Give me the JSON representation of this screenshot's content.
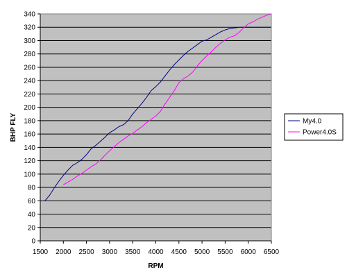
{
  "chart_data": {
    "type": "line",
    "title": "",
    "xlabel": "RPM",
    "ylabel": "BHP FLY",
    "xlim": [
      1500,
      6500
    ],
    "ylim": [
      0,
      340
    ],
    "xticks": [
      1500,
      2000,
      2500,
      3000,
      3500,
      4000,
      4500,
      5000,
      5500,
      6000,
      6500
    ],
    "yticks": [
      0,
      20,
      40,
      60,
      80,
      100,
      120,
      140,
      160,
      180,
      200,
      220,
      240,
      260,
      280,
      300,
      320,
      340
    ],
    "grid": "horizontal",
    "legend_position": "right",
    "plot_background": "#c0c0c0",
    "series": [
      {
        "name": "My4.0",
        "color": "#000080",
        "x": [
          1600,
          1700,
          1800,
          1900,
          2000,
          2100,
          2200,
          2300,
          2400,
          2500,
          2600,
          2700,
          2800,
          2900,
          3000,
          3100,
          3200,
          3300,
          3400,
          3500,
          3600,
          3700,
          3800,
          3900,
          4000,
          4100,
          4200,
          4300,
          4400,
          4500,
          4600,
          4700,
          4800,
          4900,
          5000,
          5100,
          5200,
          5300,
          5400,
          5500,
          5600,
          5700,
          5800,
          5900,
          6000,
          6100,
          6200,
          6300,
          6400,
          6500
        ],
        "y": [
          60,
          68,
          79,
          89,
          98,
          106,
          113,
          117,
          122,
          129,
          138,
          143,
          149,
          155,
          162,
          166,
          171,
          174,
          180,
          190,
          198,
          206,
          215,
          225,
          231,
          238,
          247,
          256,
          264,
          271,
          278,
          284,
          289,
          294,
          299,
          301,
          305,
          309,
          313,
          316,
          318,
          319,
          320,
          320,
          320,
          320,
          320,
          320,
          320,
          320
        ]
      },
      {
        "name": "Power4.0S",
        "color": "#ff00ff",
        "x": [
          2000,
          2100,
          2200,
          2300,
          2400,
          2500,
          2600,
          2700,
          2800,
          2900,
          3000,
          3100,
          3200,
          3300,
          3400,
          3500,
          3600,
          3700,
          3800,
          3900,
          4000,
          4100,
          4200,
          4300,
          4400,
          4500,
          4600,
          4700,
          4800,
          4900,
          5000,
          5100,
          5200,
          5300,
          5400,
          5500,
          5600,
          5700,
          5800,
          5900,
          6000,
          6100,
          6200,
          6300,
          6400,
          6500
        ],
        "y": [
          84,
          88,
          92,
          97,
          101,
          106,
          111,
          115,
          121,
          128,
          135,
          141,
          147,
          152,
          157,
          161,
          166,
          171,
          177,
          182,
          187,
          194,
          205,
          215,
          225,
          237,
          243,
          247,
          253,
          262,
          270,
          277,
          283,
          290,
          296,
          301,
          305,
          307,
          312,
          319,
          325,
          328,
          332,
          335,
          338,
          340
        ]
      }
    ]
  }
}
